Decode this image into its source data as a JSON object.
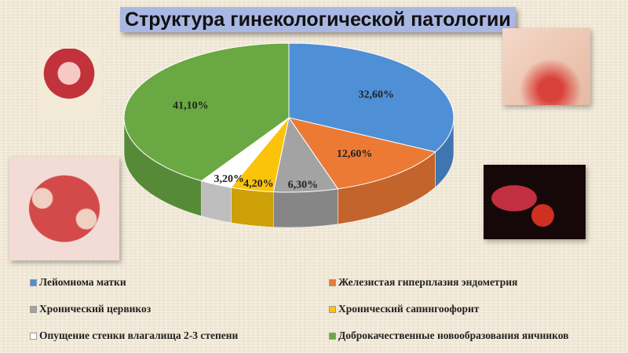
{
  "title": "Структура гинекологической патологии",
  "chart_data": {
    "type": "pie",
    "style": "3d",
    "title": "Структура гинекологической патологии",
    "legend_position": "bottom",
    "categories": [
      "Лейомиома матки",
      "Железистая гиперплазия эндометрия",
      "Хронический цервикоз",
      "Хронический сапингоофорит",
      "Опущение стенки влагалища 2-3 степени",
      "Доброкачественные новообразования яичников"
    ],
    "values": [
      32.6,
      12.6,
      6.3,
      4.2,
      3.2,
      41.1
    ],
    "data_labels": [
      "32,60%",
      "12,60%",
      "6,30%",
      "4,20%",
      "3,20%",
      "41,10%"
    ],
    "colors": [
      "#4f8fd6",
      "#ec7a35",
      "#a3a3a3",
      "#fbc30a",
      "#ffffff",
      "#6aa843"
    ]
  }
}
